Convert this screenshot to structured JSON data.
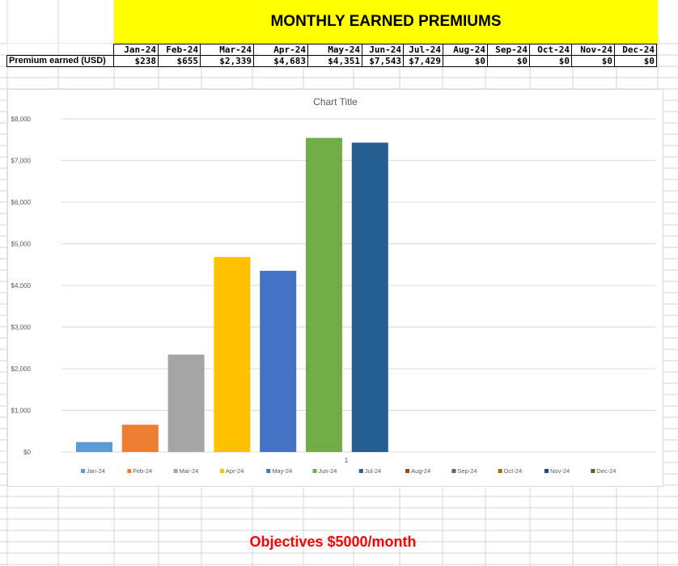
{
  "banner_title": "MONTHLY EARNED PREMIUMS",
  "table": {
    "row_label": "Premium earned (USD)",
    "months": [
      "Jan-24",
      "Feb-24",
      "Mar-24",
      "Apr-24",
      "May-24",
      "Jun-24",
      "Jul-24",
      "Aug-24",
      "Sep-24",
      "Oct-24",
      "Nov-24",
      "Dec-24"
    ],
    "values": [
      "$238",
      "$655",
      "$2,339",
      "$4,683",
      "$4,351",
      "$7,543",
      "$7,429",
      "$0",
      "$0",
      "$0",
      "$0",
      "$0"
    ]
  },
  "objective_text": "Objectives $5000/month",
  "colors": {
    "banner_bg": "#ffff00",
    "objective_text": "#ff0000",
    "gridline": "#d9d9d9"
  },
  "chart_data": {
    "type": "bar",
    "title": "Chart Title",
    "categories": [
      "1"
    ],
    "ylim": [
      0,
      8000
    ],
    "yticks": [
      "$0",
      "$1,000",
      "$2,000",
      "$3,000",
      "$4,000",
      "$5,000",
      "$6,000",
      "$7,000",
      "$8,000"
    ],
    "grid": true,
    "legend_position": "bottom",
    "series": [
      {
        "name": "Jan-24",
        "values": [
          238
        ],
        "color": "#5b9bd5"
      },
      {
        "name": "Feb-24",
        "values": [
          655
        ],
        "color": "#ed7d31"
      },
      {
        "name": "Mar-24",
        "values": [
          2339
        ],
        "color": "#a5a5a5"
      },
      {
        "name": "Apr-24",
        "values": [
          4683
        ],
        "color": "#ffc000"
      },
      {
        "name": "May-24",
        "values": [
          4351
        ],
        "color": "#4472c4"
      },
      {
        "name": "Jun-24",
        "values": [
          7543
        ],
        "color": "#70ad47"
      },
      {
        "name": "Jul-24",
        "values": [
          7429
        ],
        "color": "#255e91"
      },
      {
        "name": "Aug-24",
        "values": [
          0
        ],
        "color": "#9e480e"
      },
      {
        "name": "Sep-24",
        "values": [
          0
        ],
        "color": "#636363"
      },
      {
        "name": "Oct-24",
        "values": [
          0
        ],
        "color": "#997300"
      },
      {
        "name": "Nov-24",
        "values": [
          0
        ],
        "color": "#264478"
      },
      {
        "name": "Dec-24",
        "values": [
          0
        ],
        "color": "#43682b"
      }
    ]
  }
}
